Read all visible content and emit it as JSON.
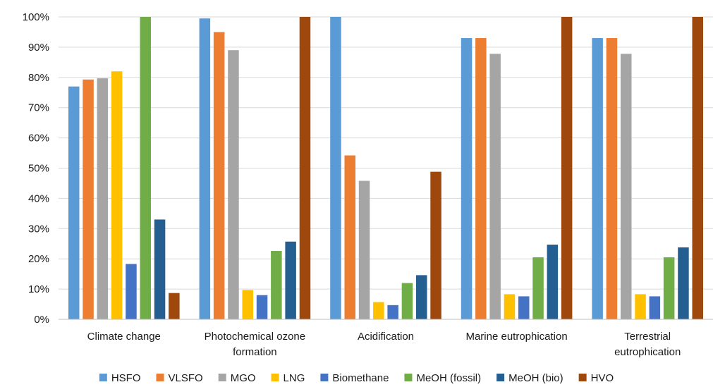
{
  "chart_data": {
    "type": "bar",
    "title": "",
    "xlabel": "",
    "ylabel": "",
    "ylim": [
      0,
      100
    ],
    "y_ticks": [
      "0%",
      "10%",
      "20%",
      "30%",
      "40%",
      "50%",
      "60%",
      "70%",
      "80%",
      "90%",
      "100%"
    ],
    "grid": true,
    "legend_position": "bottom",
    "categories": [
      [
        "Climate change"
      ],
      [
        "Photochemical ozone",
        "formation"
      ],
      [
        "Acidification"
      ],
      [
        "Marine eutrophication"
      ],
      [
        "Terrestrial",
        "eutrophication"
      ]
    ],
    "series": [
      {
        "name": "HSFO",
        "color": "#5B9BD5",
        "values": [
          77,
          99.5,
          100,
          93,
          93
        ]
      },
      {
        "name": "VLSFO",
        "color": "#ED7D31",
        "values": [
          79.3,
          95,
          54.2,
          93,
          93
        ]
      },
      {
        "name": "MGO",
        "color": "#A5A5A5",
        "values": [
          79.7,
          89,
          45.8,
          87.8,
          87.8
        ]
      },
      {
        "name": "LNG",
        "color": "#FFC000",
        "values": [
          82,
          9.7,
          5.7,
          8.3,
          8.3
        ]
      },
      {
        "name": "Biomethane",
        "color": "#4472C4",
        "values": [
          18.3,
          8,
          4.7,
          7.6,
          7.6
        ]
      },
      {
        "name": "MeOH (fossil)",
        "color": "#70AD47",
        "values": [
          100,
          22.6,
          12,
          20.5,
          20.5
        ]
      },
      {
        "name": "MeOH (bio)",
        "color": "#255E91",
        "values": [
          33,
          25.7,
          14.6,
          24.7,
          23.8
        ]
      },
      {
        "name": "HVO",
        "color": "#9E480E",
        "values": [
          8.7,
          100,
          48.8,
          100,
          100
        ]
      }
    ]
  }
}
